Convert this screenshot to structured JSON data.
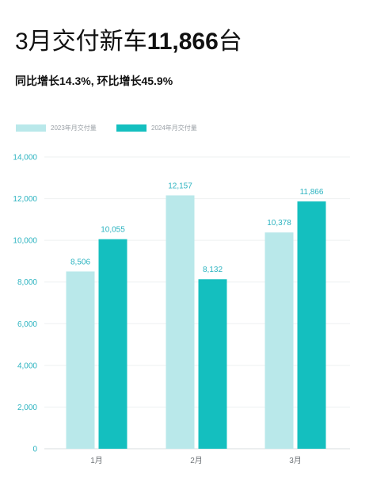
{
  "headline": {
    "prefix": "3月交付新车",
    "number": "11,866",
    "suffix": "台"
  },
  "subline": "同比增长14.3%, 环比增长45.9%",
  "chart_data": {
    "type": "bar",
    "categories": [
      "1月",
      "2月",
      "3月"
    ],
    "series": [
      {
        "name": "2023年月交付量",
        "color": "#b9e8ea",
        "values": [
          8506,
          12157,
          10378
        ],
        "labels": [
          "8,506",
          "12,157",
          "10,378"
        ]
      },
      {
        "name": "2024年月交付量",
        "color": "#14bfbf",
        "values": [
          10055,
          8132,
          11866
        ],
        "labels": [
          "10,055",
          "8,132",
          "11,866"
        ]
      }
    ],
    "ylim": [
      0,
      14000
    ],
    "yticks": [
      0,
      2000,
      4000,
      6000,
      8000,
      10000,
      12000,
      14000
    ],
    "ytick_labels": [
      "0",
      "2,000",
      "4,000",
      "6,000",
      "8,000",
      "10,000",
      "12,000",
      "14,000"
    ],
    "grid": true,
    "legend_position": "top-left",
    "title": "",
    "xlabel": "",
    "ylabel": ""
  }
}
